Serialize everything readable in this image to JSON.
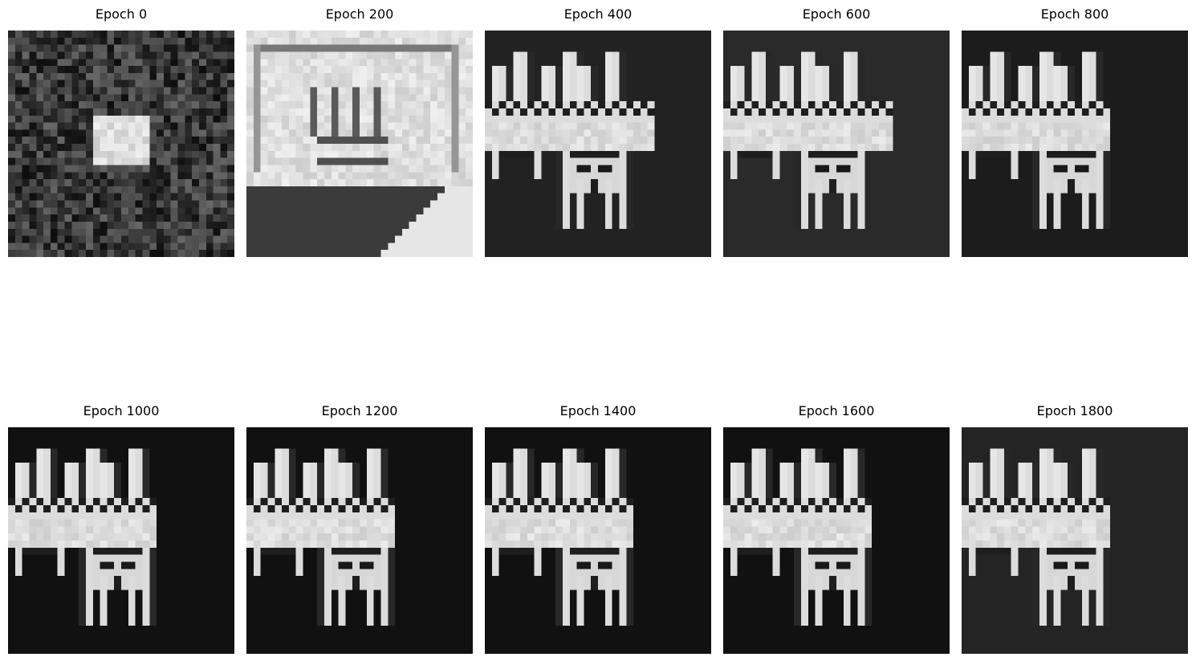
{
  "figure": {
    "panels": [
      {
        "title": "Epoch 0",
        "background": "#3a3a3a",
        "stage": "noise"
      },
      {
        "title": "Epoch 200",
        "background": "#3b3b3b",
        "stage": "early"
      },
      {
        "title": "Epoch 400",
        "background": "#222222",
        "stage": "partial"
      },
      {
        "title": "Epoch 600",
        "background": "#2a2a2a",
        "stage": "partial"
      },
      {
        "title": "Epoch 800",
        "background": "#1c1c1c",
        "stage": "clean"
      },
      {
        "title": "Epoch 1000",
        "background": "#111111",
        "stage": "clean"
      },
      {
        "title": "Epoch 1200",
        "background": "#111111",
        "stage": "clean"
      },
      {
        "title": "Epoch 1400",
        "background": "#111111",
        "stage": "clean"
      },
      {
        "title": "Epoch 1600",
        "background": "#111111",
        "stage": "clean"
      },
      {
        "title": "Epoch 1800",
        "background": "#242424",
        "stage": "clean"
      }
    ]
  }
}
